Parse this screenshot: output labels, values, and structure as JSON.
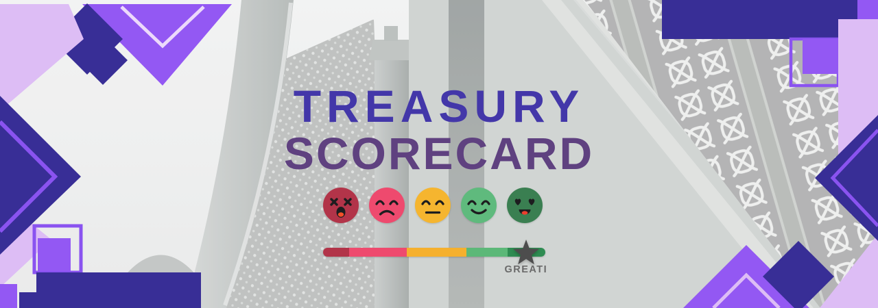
{
  "header": {
    "title_line1": "TREASURY",
    "title_line2": "SCORECARD",
    "title_line1_color": "#4337a9",
    "title_line2_color": "#5f4180"
  },
  "rating": {
    "faces": [
      {
        "name": "dead-face",
        "color": "#b23449",
        "eyes": "x",
        "mouth": "open"
      },
      {
        "name": "sad-face",
        "color": "#ee4a6e",
        "eyes": "closed",
        "mouth": "frown"
      },
      {
        "name": "neutral-face",
        "color": "#f5b52f",
        "eyes": "closed",
        "mouth": "flat"
      },
      {
        "name": "happy-face",
        "color": "#5fba7d",
        "eyes": "closed",
        "mouth": "smile"
      },
      {
        "name": "love-face",
        "color": "#3a7f51",
        "eyes": "hearts",
        "mouth": "open-smile"
      }
    ],
    "scale": {
      "segments": [
        {
          "color": "#b23449",
          "width_pct": 11.8
        },
        {
          "color": "#ee4a6e",
          "width_pct": 25.8
        },
        {
          "color": "#f5b02e",
          "width_pct": 26.8
        },
        {
          "color": "#5cb878",
          "width_pct": 18.6
        },
        {
          "color": "#2f8c52",
          "width_pct": 17.0
        }
      ],
      "marker": {
        "shape": "star",
        "color": "#4d4d4d",
        "position_pct": 91.3
      },
      "label": "GREATI",
      "label_color": "#6a6a6a"
    }
  },
  "decor": {
    "colors": {
      "indigo": "#382e96",
      "purple": "#9358f3",
      "stripe": "#8a53f0",
      "lavender": "#ddbdf5",
      "lavender_light": "#ecd9fb"
    }
  }
}
